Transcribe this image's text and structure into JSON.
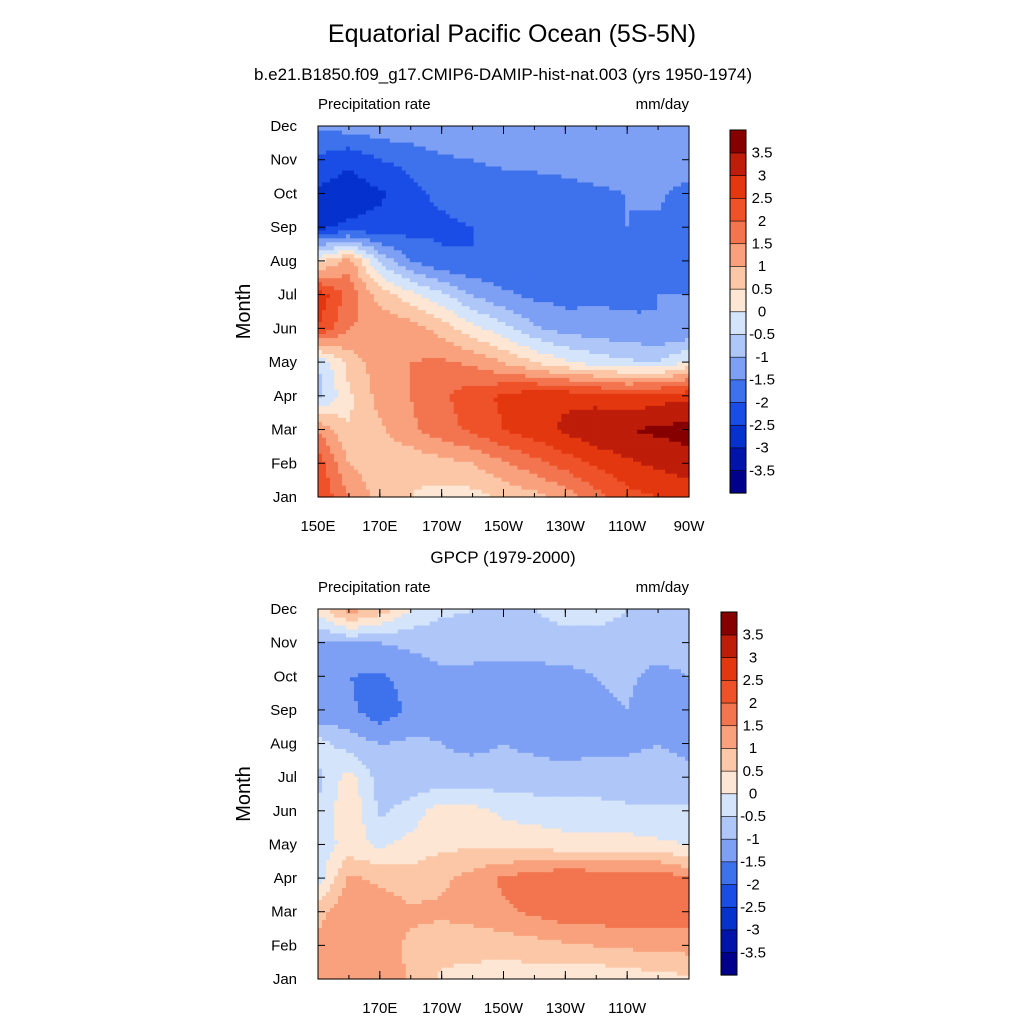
{
  "figure": {
    "title": "Equatorial Pacific Ocean (5S-5N)"
  },
  "chart_data": [
    {
      "type": "heatmap",
      "title": "b.e21.B1850.f09_g17.CMIP6-DAMIP-hist-nat.003 (yrs 1950-1974)",
      "left_label": "Precipitation rate",
      "right_label": "mm/day",
      "ylabel": "Month",
      "xlabel": "",
      "x_ticklabels": [
        "150E",
        "170E",
        "170W",
        "150W",
        "130W",
        "110W",
        "90W"
      ],
      "y_ticklabels": [
        "Jan",
        "Feb",
        "Mar",
        "Apr",
        "May",
        "Jun",
        "Jul",
        "Aug",
        "Sep",
        "Oct",
        "Nov",
        "Dec"
      ],
      "x": [
        150,
        160,
        170,
        180,
        190,
        200,
        210,
        220,
        230,
        240,
        250,
        260,
        270
      ],
      "x_units": "degrees east longitude",
      "y": [
        1,
        2,
        3,
        4,
        5,
        6,
        7,
        8,
        9,
        10,
        11,
        12
      ],
      "values": [
        [
          2.5,
          1.5,
          0.8,
          0.5,
          0.3,
          0.3,
          0.6,
          0.8,
          1.2,
          1.8,
          2.3,
          2.5,
          2.6
        ],
        [
          2.3,
          1.0,
          0.7,
          0.6,
          0.8,
          1.0,
          1.4,
          1.8,
          2.2,
          2.6,
          2.9,
          3.1,
          3.3
        ],
        [
          1.5,
          0.5,
          0.9,
          1.4,
          1.8,
          2.1,
          2.5,
          2.8,
          3.1,
          3.4,
          3.5,
          3.6,
          3.7
        ],
        [
          -0.7,
          0.4,
          1.2,
          1.5,
          1.9,
          2.3,
          2.6,
          2.9,
          2.9,
          2.8,
          2.6,
          2.8,
          2.9
        ],
        [
          -0.5,
          0.7,
          1.3,
          1.5,
          1.6,
          1.4,
          1.0,
          0.5,
          0.1,
          -0.2,
          -0.4,
          -0.5,
          0.1
        ],
        [
          2.5,
          1.5,
          1.4,
          1.3,
          0.8,
          0.2,
          -0.3,
          -0.9,
          -1.2,
          -1.3,
          -1.4,
          -1.5,
          -1.5
        ],
        [
          2.9,
          1.8,
          0.8,
          0.2,
          -0.4,
          -1.0,
          -1.4,
          -1.6,
          -1.7,
          -1.6,
          -1.6,
          -1.5,
          -1.5
        ],
        [
          0.3,
          1.3,
          -0.6,
          -1.5,
          -1.9,
          -2.0,
          -1.9,
          -1.9,
          -1.8,
          -1.7,
          -1.6,
          -1.6,
          -1.7
        ],
        [
          -2.6,
          -2.4,
          -2.3,
          -2.2,
          -2.1,
          -2.0,
          -1.9,
          -1.9,
          -1.8,
          -1.7,
          -1.5,
          -1.6,
          -2.0
        ],
        [
          -2.6,
          -2.8,
          -2.6,
          -2.1,
          -1.9,
          -1.8,
          -1.8,
          -1.7,
          -1.7,
          -1.6,
          -1.5,
          -1.4,
          -1.7
        ],
        [
          -2.1,
          -2.4,
          -2.0,
          -1.9,
          -1.6,
          -1.5,
          -1.4,
          -1.4,
          -1.3,
          -1.2,
          -1.2,
          -1.2,
          -1.2
        ],
        [
          -1.4,
          -1.3,
          -1.2,
          -1.1,
          -1.0,
          -1.0,
          -1.0,
          -1.0,
          -1.1,
          -1.1,
          -1.2,
          -1.2,
          -1.3
        ]
      ],
      "xlim": [
        150,
        270
      ],
      "colorbar_labels": [
        "3.5",
        "3",
        "2.5",
        "2",
        "1.5",
        "1",
        "0.5",
        "0",
        "-0.5",
        "-1",
        "-1.5",
        "-2",
        "-2.5",
        "-3",
        "-3.5"
      ]
    },
    {
      "type": "heatmap",
      "title": "GPCP (1979-2000)",
      "left_label": "Precipitation rate",
      "right_label": "mm/day",
      "ylabel": "Month",
      "xlabel": "",
      "x_ticklabels": [
        "170E",
        "170W",
        "150W",
        "130W",
        "110W"
      ],
      "y_ticklabels": [
        "Jan",
        "Feb",
        "Mar",
        "Apr",
        "May",
        "Jun",
        "Jul",
        "Aug",
        "Sep",
        "Oct",
        "Nov",
        "Dec"
      ],
      "x": [
        150,
        160,
        170,
        180,
        190,
        200,
        210,
        220,
        230,
        240,
        250,
        260,
        270
      ],
      "x_units": "degrees east longitude",
      "y": [
        1,
        2,
        3,
        4,
        5,
        6,
        7,
        8,
        9,
        10,
        11,
        12
      ],
      "values": [
        [
          1.3,
          1.0,
          1.5,
          0.9,
          0.4,
          0.3,
          0.2,
          0.2,
          0.1,
          0.1,
          0.2,
          0.3,
          0.4
        ],
        [
          1.2,
          1.4,
          1.2,
          0.9,
          0.7,
          0.7,
          0.7,
          0.8,
          0.9,
          1.0,
          1.1,
          1.1,
          1.2
        ],
        [
          0.8,
          1.5,
          1.3,
          1.1,
          1.1,
          1.2,
          1.4,
          1.6,
          1.8,
          1.8,
          1.9,
          1.9,
          1.7
        ],
        [
          -0.3,
          1.1,
          0.9,
          0.7,
          0.9,
          1.2,
          1.6,
          1.8,
          2.0,
          1.9,
          1.8,
          1.9,
          1.5
        ],
        [
          -0.3,
          0.2,
          -0.1,
          0.2,
          0.4,
          0.4,
          0.3,
          0.3,
          0.2,
          0.2,
          0.2,
          0.1,
          0.0
        ],
        [
          -0.5,
          0.5,
          -0.6,
          -0.3,
          0.3,
          0.2,
          -0.1,
          -0.2,
          -0.3,
          -0.3,
          -0.4,
          -0.4,
          -0.4
        ],
        [
          -0.6,
          0.2,
          -0.7,
          -0.8,
          -0.9,
          -0.8,
          -0.8,
          -0.8,
          -0.8,
          -0.8,
          -0.8,
          -0.8,
          -0.9
        ],
        [
          -0.3,
          -0.7,
          -1.0,
          -0.9,
          -1.0,
          -1.1,
          -1.0,
          -1.1,
          -1.2,
          -1.1,
          -1.1,
          -1.0,
          -1.1
        ],
        [
          -1.4,
          -1.4,
          -1.8,
          -1.4,
          -1.1,
          -1.2,
          -1.4,
          -1.4,
          -1.3,
          -1.1,
          -1.0,
          -1.3,
          -1.1
        ],
        [
          -1.0,
          -1.5,
          -1.6,
          -1.3,
          -1.1,
          -1.2,
          -1.3,
          -1.3,
          -1.2,
          -1.0,
          -0.9,
          -1.2,
          -1.0
        ],
        [
          -1.1,
          -1.0,
          -1.0,
          -0.9,
          -0.8,
          -0.7,
          -0.6,
          -0.6,
          -0.6,
          -0.6,
          -0.6,
          -0.7,
          -0.7
        ],
        [
          0.2,
          1.3,
          0.8,
          0.0,
          -0.4,
          -0.5,
          -0.5,
          -0.5,
          -0.4,
          -0.4,
          -0.5,
          -0.5,
          -0.5
        ]
      ],
      "xlim": [
        150,
        270
      ],
      "colorbar_labels": [
        "3.5",
        "3",
        "2.5",
        "2",
        "1.5",
        "1",
        "0.5",
        "0",
        "-0.5",
        "-1",
        "-1.5",
        "-2",
        "-2.5",
        "-3",
        "-3.5"
      ]
    }
  ],
  "colorscale": {
    "levels": [
      -3.5,
      -3,
      -2.5,
      -2,
      -1.5,
      -1,
      -0.5,
      0,
      0.5,
      1,
      1.5,
      2,
      2.5,
      3,
      3.5
    ],
    "colors": [
      "#00008a",
      "#0014aa",
      "#0531cd",
      "#1a4de6",
      "#3e72ed",
      "#7ea0f4",
      "#aec6f8",
      "#d4e4fb",
      "#fde6d3",
      "#fcc7a6",
      "#f9a07c",
      "#f27550",
      "#ef5229",
      "#e3370f",
      "#be1d0a",
      "#870000"
    ]
  }
}
